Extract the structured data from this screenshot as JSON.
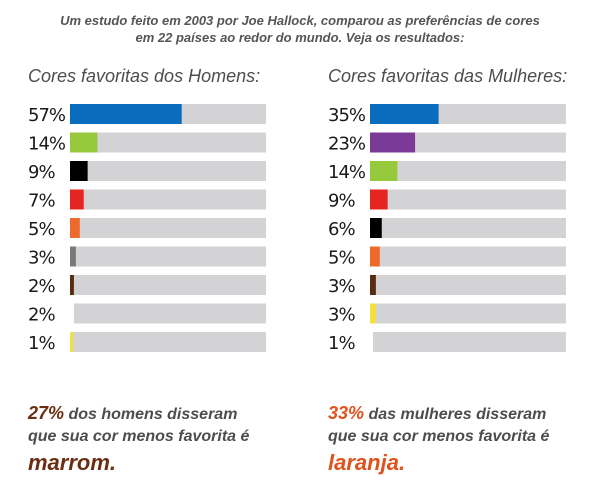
{
  "intro": {
    "line1": "Um estudo feito em 2003 por Joe Hallock, comparou as preferências de cores",
    "line2": "em 22 países ao redor do mundo. Veja os resultados:"
  },
  "chart_data": [
    {
      "type": "bar",
      "orientation": "horizontal",
      "title": "Cores favoritas dos Homens:",
      "xlim": [
        0,
        100
      ],
      "categories": [
        "blue",
        "green",
        "black",
        "red",
        "orange",
        "gray",
        "brown",
        "white",
        "yellow"
      ],
      "values": [
        57,
        14,
        9,
        7,
        5,
        3,
        2,
        2,
        1
      ],
      "labels": [
        "57%",
        "14%",
        "9%",
        "7%",
        "5%",
        "3%",
        "2%",
        "2%",
        "1%"
      ],
      "colors": [
        "#0a6cbd",
        "#97c93c",
        "#000000",
        "#e52620",
        "#ee6a2a",
        "#7a7a7a",
        "#5a2d12",
        "#ffffff",
        "#f5e03a"
      ]
    },
    {
      "type": "bar",
      "orientation": "horizontal",
      "title": "Cores favoritas das Mulheres:",
      "xlim": [
        0,
        100
      ],
      "categories": [
        "blue",
        "purple",
        "green",
        "red",
        "black",
        "orange",
        "brown",
        "yellow",
        "white"
      ],
      "values": [
        35,
        23,
        14,
        9,
        6,
        5,
        3,
        3,
        1
      ],
      "labels": [
        "35%",
        "23%",
        "14%",
        "9%",
        "6%",
        "5%",
        "3%",
        "3%",
        "1%"
      ],
      "colors": [
        "#0a6cbd",
        "#7b3a98",
        "#97c93c",
        "#e52620",
        "#000000",
        "#ee6a2a",
        "#5a2d12",
        "#f5e03a",
        "#ffffff"
      ]
    }
  ],
  "bar_track_color": "#d3d3d6",
  "footer": {
    "men": {
      "pct": "27%",
      "line1": " dos homens disseram",
      "line2": "que sua cor menos favorita é",
      "word": "marrom",
      "end": "."
    },
    "women": {
      "pct": "33%",
      "line1": " das mulheres disseram",
      "line2": "que sua cor menos favorita é",
      "word": "laranja",
      "end": "."
    }
  }
}
